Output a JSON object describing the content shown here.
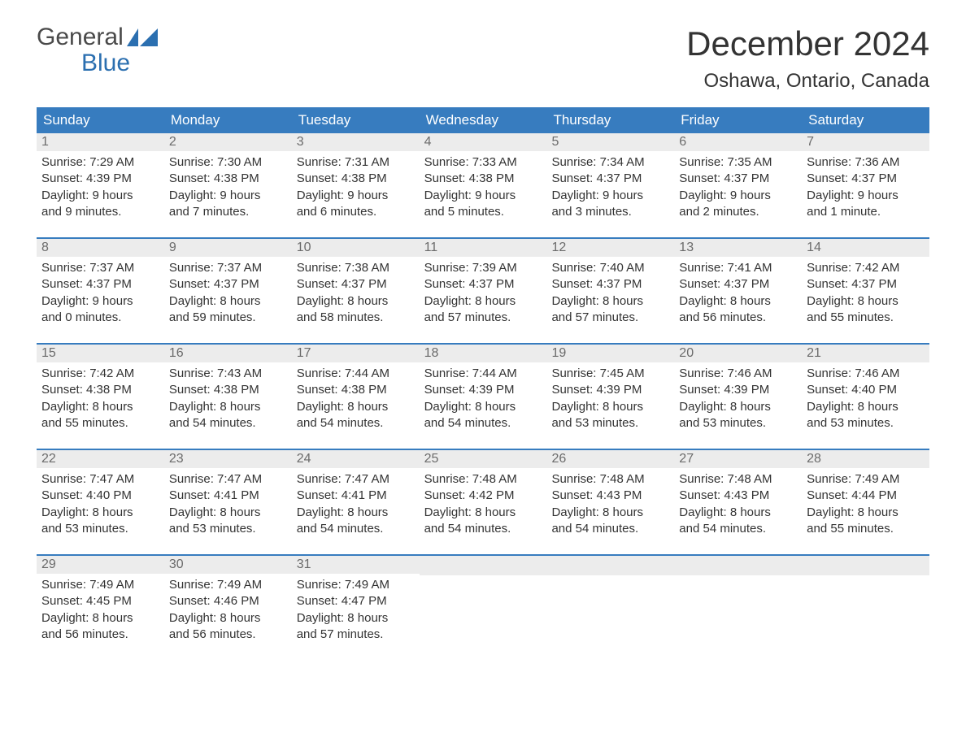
{
  "logo": {
    "top": "General",
    "bottom": "Blue"
  },
  "title": "December 2024",
  "location": "Oshawa, Ontario, Canada",
  "colors": {
    "header_bg": "#377cbf",
    "header_text": "#ffffff",
    "daynum_bg": "#ececec",
    "daynum_text": "#6b6b6b",
    "body_text": "#333333",
    "logo_gray": "#4a4a4a",
    "logo_blue": "#2b6fb0",
    "week_border": "#377cbf",
    "page_bg": "#ffffff"
  },
  "day_names": [
    "Sunday",
    "Monday",
    "Tuesday",
    "Wednesday",
    "Thursday",
    "Friday",
    "Saturday"
  ],
  "weeks": [
    [
      {
        "n": "1",
        "sunrise": "Sunrise: 7:29 AM",
        "sunset": "Sunset: 4:39 PM",
        "d1": "Daylight: 9 hours",
        "d2": "and 9 minutes."
      },
      {
        "n": "2",
        "sunrise": "Sunrise: 7:30 AM",
        "sunset": "Sunset: 4:38 PM",
        "d1": "Daylight: 9 hours",
        "d2": "and 7 minutes."
      },
      {
        "n": "3",
        "sunrise": "Sunrise: 7:31 AM",
        "sunset": "Sunset: 4:38 PM",
        "d1": "Daylight: 9 hours",
        "d2": "and 6 minutes."
      },
      {
        "n": "4",
        "sunrise": "Sunrise: 7:33 AM",
        "sunset": "Sunset: 4:38 PM",
        "d1": "Daylight: 9 hours",
        "d2": "and 5 minutes."
      },
      {
        "n": "5",
        "sunrise": "Sunrise: 7:34 AM",
        "sunset": "Sunset: 4:37 PM",
        "d1": "Daylight: 9 hours",
        "d2": "and 3 minutes."
      },
      {
        "n": "6",
        "sunrise": "Sunrise: 7:35 AM",
        "sunset": "Sunset: 4:37 PM",
        "d1": "Daylight: 9 hours",
        "d2": "and 2 minutes."
      },
      {
        "n": "7",
        "sunrise": "Sunrise: 7:36 AM",
        "sunset": "Sunset: 4:37 PM",
        "d1": "Daylight: 9 hours",
        "d2": "and 1 minute."
      }
    ],
    [
      {
        "n": "8",
        "sunrise": "Sunrise: 7:37 AM",
        "sunset": "Sunset: 4:37 PM",
        "d1": "Daylight: 9 hours",
        "d2": "and 0 minutes."
      },
      {
        "n": "9",
        "sunrise": "Sunrise: 7:37 AM",
        "sunset": "Sunset: 4:37 PM",
        "d1": "Daylight: 8 hours",
        "d2": "and 59 minutes."
      },
      {
        "n": "10",
        "sunrise": "Sunrise: 7:38 AM",
        "sunset": "Sunset: 4:37 PM",
        "d1": "Daylight: 8 hours",
        "d2": "and 58 minutes."
      },
      {
        "n": "11",
        "sunrise": "Sunrise: 7:39 AM",
        "sunset": "Sunset: 4:37 PM",
        "d1": "Daylight: 8 hours",
        "d2": "and 57 minutes."
      },
      {
        "n": "12",
        "sunrise": "Sunrise: 7:40 AM",
        "sunset": "Sunset: 4:37 PM",
        "d1": "Daylight: 8 hours",
        "d2": "and 57 minutes."
      },
      {
        "n": "13",
        "sunrise": "Sunrise: 7:41 AM",
        "sunset": "Sunset: 4:37 PM",
        "d1": "Daylight: 8 hours",
        "d2": "and 56 minutes."
      },
      {
        "n": "14",
        "sunrise": "Sunrise: 7:42 AM",
        "sunset": "Sunset: 4:37 PM",
        "d1": "Daylight: 8 hours",
        "d2": "and 55 minutes."
      }
    ],
    [
      {
        "n": "15",
        "sunrise": "Sunrise: 7:42 AM",
        "sunset": "Sunset: 4:38 PM",
        "d1": "Daylight: 8 hours",
        "d2": "and 55 minutes."
      },
      {
        "n": "16",
        "sunrise": "Sunrise: 7:43 AM",
        "sunset": "Sunset: 4:38 PM",
        "d1": "Daylight: 8 hours",
        "d2": "and 54 minutes."
      },
      {
        "n": "17",
        "sunrise": "Sunrise: 7:44 AM",
        "sunset": "Sunset: 4:38 PM",
        "d1": "Daylight: 8 hours",
        "d2": "and 54 minutes."
      },
      {
        "n": "18",
        "sunrise": "Sunrise: 7:44 AM",
        "sunset": "Sunset: 4:39 PM",
        "d1": "Daylight: 8 hours",
        "d2": "and 54 minutes."
      },
      {
        "n": "19",
        "sunrise": "Sunrise: 7:45 AM",
        "sunset": "Sunset: 4:39 PM",
        "d1": "Daylight: 8 hours",
        "d2": "and 53 minutes."
      },
      {
        "n": "20",
        "sunrise": "Sunrise: 7:46 AM",
        "sunset": "Sunset: 4:39 PM",
        "d1": "Daylight: 8 hours",
        "d2": "and 53 minutes."
      },
      {
        "n": "21",
        "sunrise": "Sunrise: 7:46 AM",
        "sunset": "Sunset: 4:40 PM",
        "d1": "Daylight: 8 hours",
        "d2": "and 53 minutes."
      }
    ],
    [
      {
        "n": "22",
        "sunrise": "Sunrise: 7:47 AM",
        "sunset": "Sunset: 4:40 PM",
        "d1": "Daylight: 8 hours",
        "d2": "and 53 minutes."
      },
      {
        "n": "23",
        "sunrise": "Sunrise: 7:47 AM",
        "sunset": "Sunset: 4:41 PM",
        "d1": "Daylight: 8 hours",
        "d2": "and 53 minutes."
      },
      {
        "n": "24",
        "sunrise": "Sunrise: 7:47 AM",
        "sunset": "Sunset: 4:41 PM",
        "d1": "Daylight: 8 hours",
        "d2": "and 54 minutes."
      },
      {
        "n": "25",
        "sunrise": "Sunrise: 7:48 AM",
        "sunset": "Sunset: 4:42 PM",
        "d1": "Daylight: 8 hours",
        "d2": "and 54 minutes."
      },
      {
        "n": "26",
        "sunrise": "Sunrise: 7:48 AM",
        "sunset": "Sunset: 4:43 PM",
        "d1": "Daylight: 8 hours",
        "d2": "and 54 minutes."
      },
      {
        "n": "27",
        "sunrise": "Sunrise: 7:48 AM",
        "sunset": "Sunset: 4:43 PM",
        "d1": "Daylight: 8 hours",
        "d2": "and 54 minutes."
      },
      {
        "n": "28",
        "sunrise": "Sunrise: 7:49 AM",
        "sunset": "Sunset: 4:44 PM",
        "d1": "Daylight: 8 hours",
        "d2": "and 55 minutes."
      }
    ],
    [
      {
        "n": "29",
        "sunrise": "Sunrise: 7:49 AM",
        "sunset": "Sunset: 4:45 PM",
        "d1": "Daylight: 8 hours",
        "d2": "and 56 minutes."
      },
      {
        "n": "30",
        "sunrise": "Sunrise: 7:49 AM",
        "sunset": "Sunset: 4:46 PM",
        "d1": "Daylight: 8 hours",
        "d2": "and 56 minutes."
      },
      {
        "n": "31",
        "sunrise": "Sunrise: 7:49 AM",
        "sunset": "Sunset: 4:47 PM",
        "d1": "Daylight: 8 hours",
        "d2": "and 57 minutes."
      },
      null,
      null,
      null,
      null
    ]
  ]
}
